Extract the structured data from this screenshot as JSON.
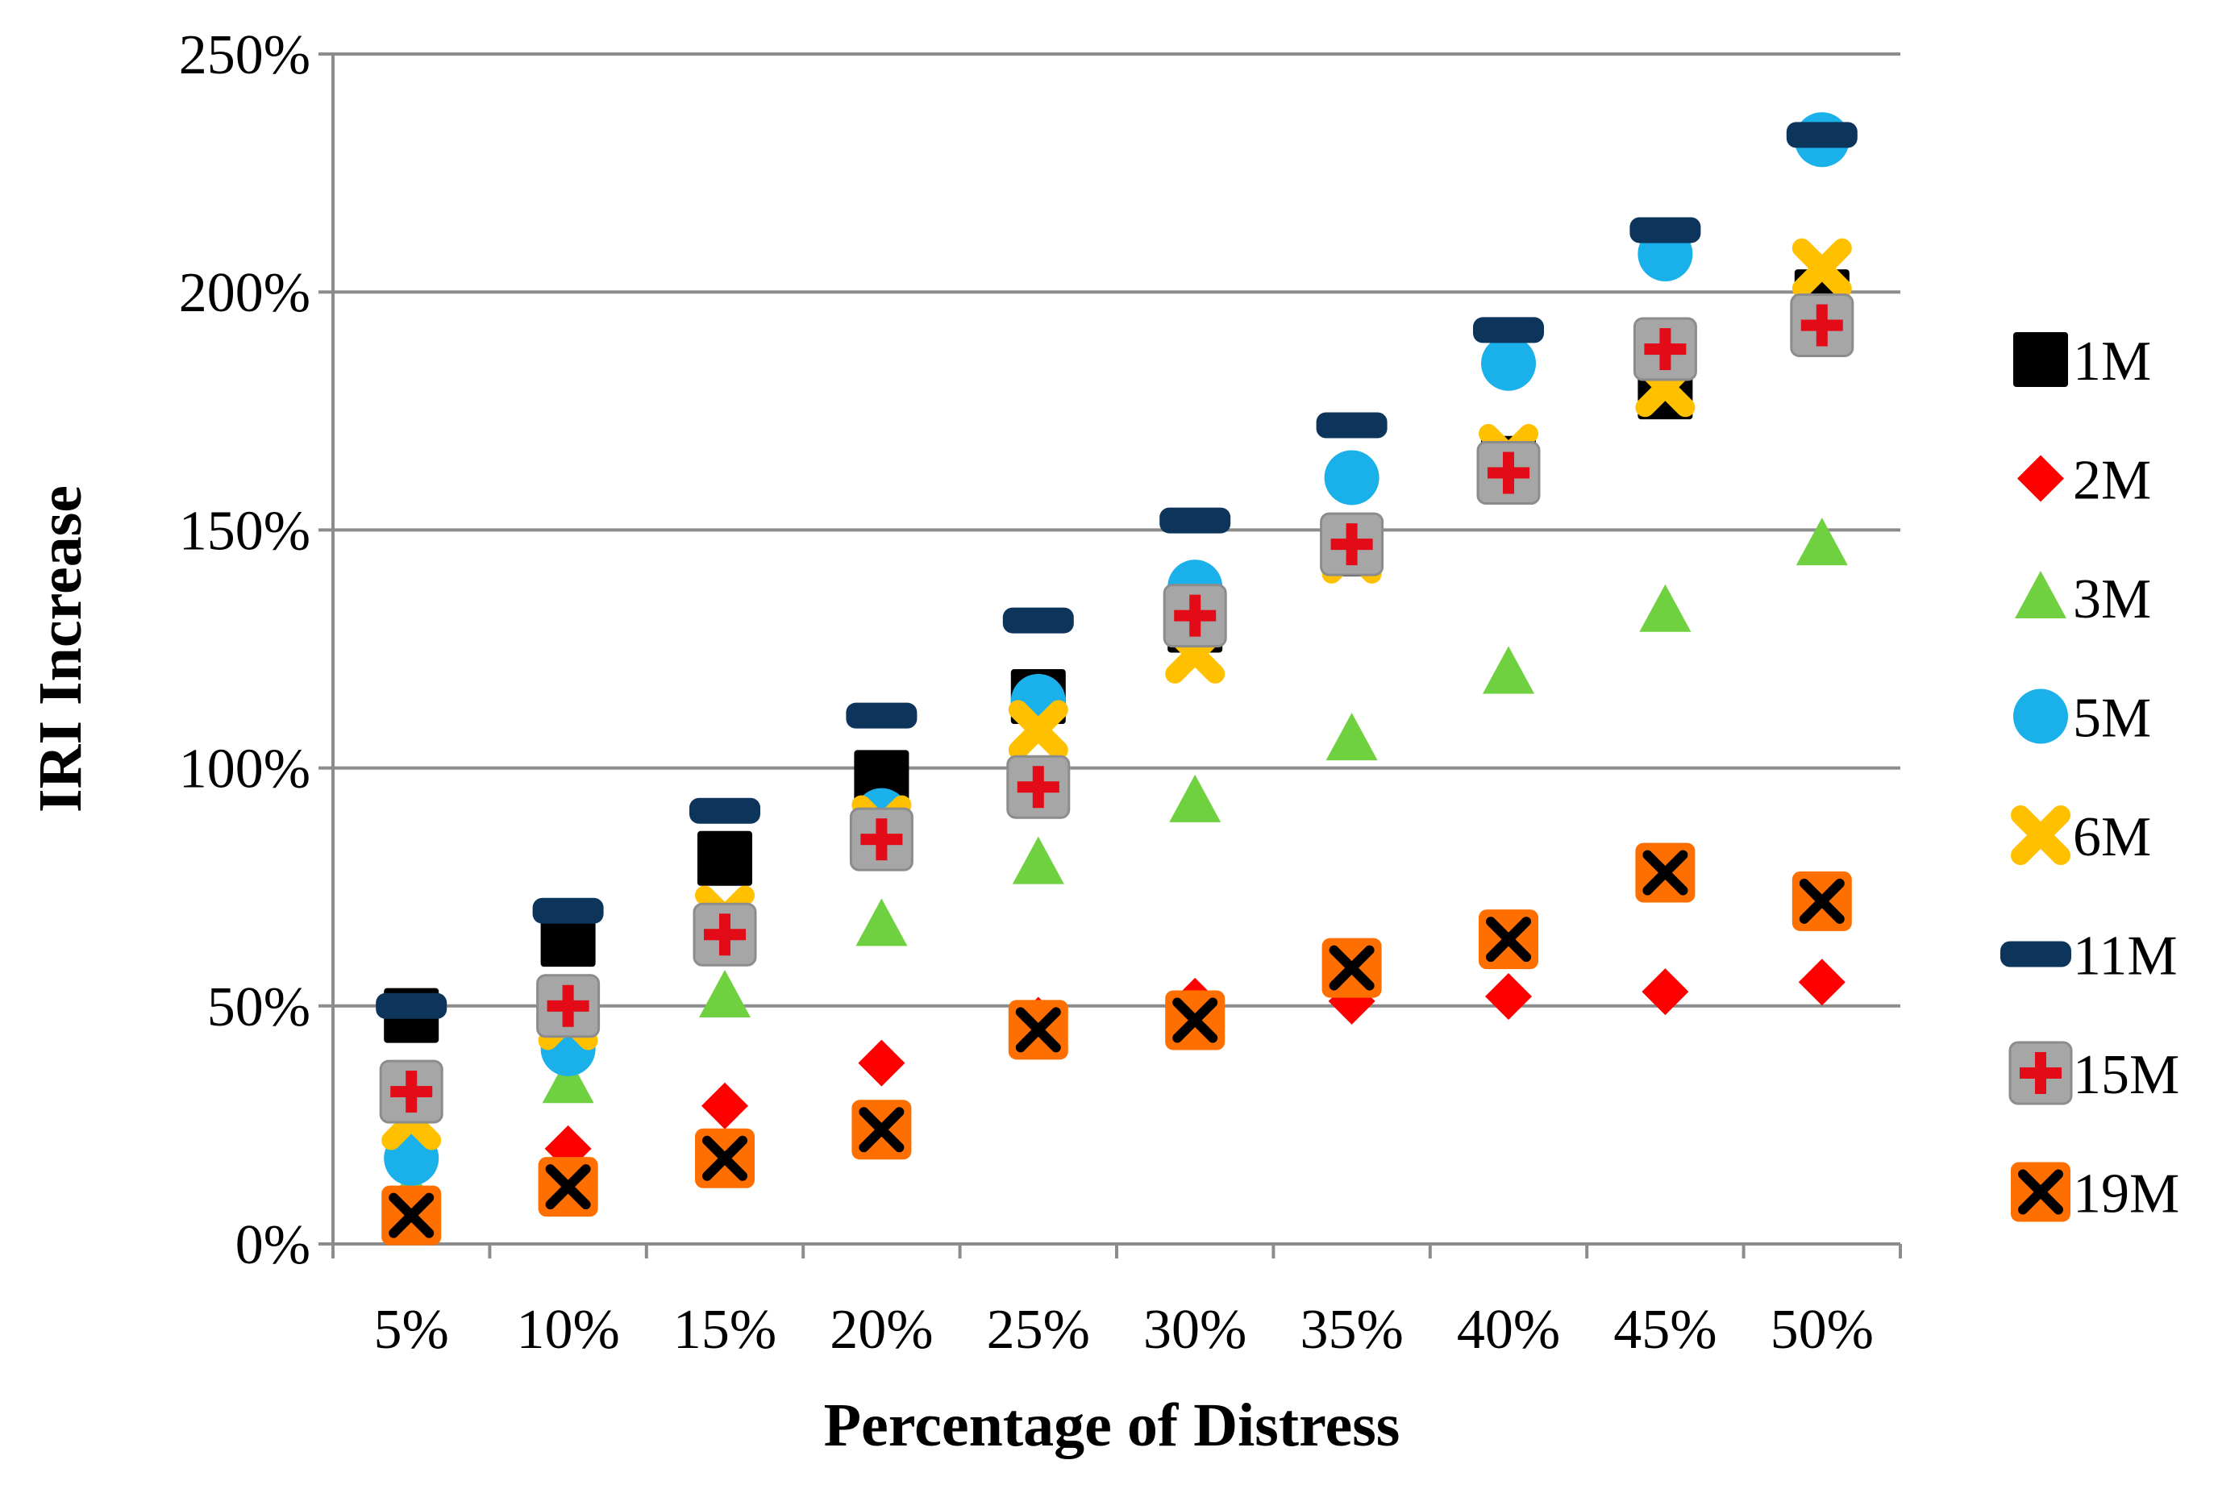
{
  "chart_data": {
    "type": "scatter",
    "title": "",
    "xlabel": "Percentage of Distress",
    "ylabel": "IRI Increase",
    "categories": [
      "5%",
      "10%",
      "15%",
      "20%",
      "25%",
      "30%",
      "35%",
      "40%",
      "45%",
      "50%"
    ],
    "ylim": [
      0,
      250
    ],
    "yticks": [
      0,
      50,
      100,
      150,
      200,
      250
    ],
    "ytick_labels": [
      "0%",
      "50%",
      "100%",
      "150%",
      "200%",
      "250%"
    ],
    "grid": "horizontal",
    "legend_position": "right",
    "series": [
      {
        "name": "1M",
        "marker": "square",
        "color": "#000000",
        "values": [
          48,
          64,
          81,
          98,
          115,
          130,
          146,
          164,
          179,
          199
        ]
      },
      {
        "name": "2M",
        "marker": "diamond",
        "color": "#ff0000",
        "values": [
          8,
          20,
          29,
          38,
          47,
          51,
          51,
          52,
          53,
          55
        ]
      },
      {
        "name": "3M",
        "marker": "triangle",
        "color": "#6fd140",
        "values": [
          11,
          34,
          52,
          67,
          80,
          93,
          106,
          120,
          133,
          147
        ]
      },
      {
        "name": "5M",
        "marker": "circle",
        "color": "#1ab0ea",
        "values": [
          18,
          41,
          66,
          90,
          114,
          138,
          161,
          185,
          208,
          232
        ]
      },
      {
        "name": "6M",
        "marker": "x-thick",
        "color": "#ffc000",
        "values": [
          26,
          47,
          69,
          88,
          108,
          124,
          145,
          166,
          180,
          205
        ]
      },
      {
        "name": "11M",
        "marker": "dash",
        "color": "#0d355c",
        "values": [
          50,
          70,
          91,
          111,
          131,
          152,
          172,
          192,
          213,
          233
        ]
      },
      {
        "name": "15M",
        "marker": "plus-on-gray-square",
        "color": "#e30b17",
        "values": [
          32,
          50,
          65,
          85,
          96,
          132,
          147,
          162,
          188,
          193
        ]
      },
      {
        "name": "19M",
        "marker": "x-on-orange-square",
        "color": "#ff6f00",
        "values": [
          6,
          12,
          18,
          24,
          45,
          47,
          58,
          64,
          78,
          72
        ]
      }
    ]
  }
}
